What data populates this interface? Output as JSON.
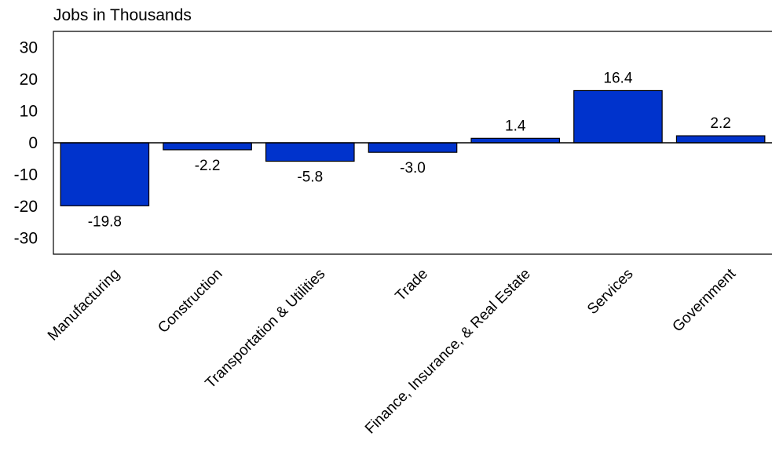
{
  "chart_data": {
    "type": "bar",
    "title": "",
    "ylabel": "Jobs in Thousands",
    "xlabel": "",
    "categories": [
      "Manufacturing",
      "Construction",
      "Transportation & Utilities",
      "Trade",
      "Finance, Insurance, & Real Estate",
      "Services",
      "Government"
    ],
    "values": [
      -19.8,
      -2.2,
      -5.8,
      -3.0,
      1.4,
      16.4,
      2.2
    ],
    "value_labels": [
      "-19.8",
      "-2.2",
      "-5.8",
      "-3.0",
      "1.4",
      "16.4",
      "2.2"
    ],
    "ylim": [
      -35,
      35
    ],
    "yticks": [
      30,
      20,
      10,
      0,
      -10,
      -20,
      -30
    ],
    "grid": false,
    "legend": "none",
    "bar_color": "#0033cc",
    "bar_edge_color": "#000000"
  }
}
